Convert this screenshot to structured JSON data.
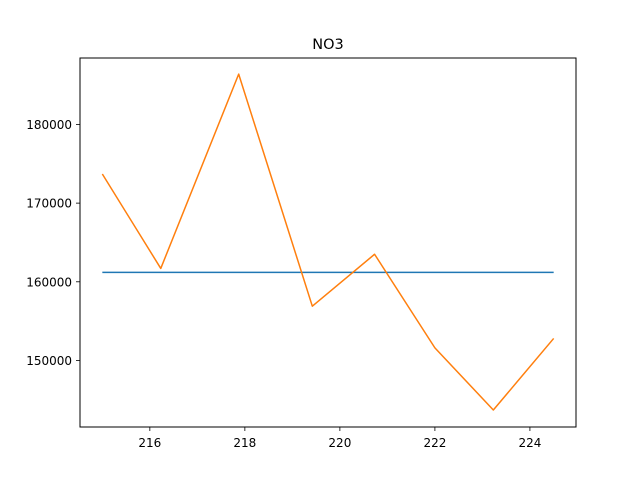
{
  "chart_data": {
    "type": "line",
    "title": "NO3",
    "xlabel": "",
    "ylabel": "",
    "xlim": [
      214.53,
      224.97
    ],
    "ylim": [
      141540,
      188450
    ],
    "xticks": [
      216,
      218,
      220,
      222,
      224
    ],
    "yticks": [
      150000,
      160000,
      170000,
      180000
    ],
    "xtick_labels": [
      "216",
      "218",
      "220",
      "222",
      "224"
    ],
    "ytick_labels": [
      "150000",
      "160000",
      "170000",
      "180000"
    ],
    "grid": false,
    "series": [
      {
        "color": "#1f77b4",
        "x": [
          215.0,
          224.5
        ],
        "y": [
          161200,
          161200
        ]
      },
      {
        "color": "#ff7f0e",
        "x": [
          215.0,
          216.23,
          217.87,
          219.42,
          220.73,
          222.0,
          223.23,
          224.5
        ],
        "y": [
          173700,
          161700,
          186400,
          156900,
          163500,
          151600,
          143700,
          152800
        ]
      }
    ]
  }
}
